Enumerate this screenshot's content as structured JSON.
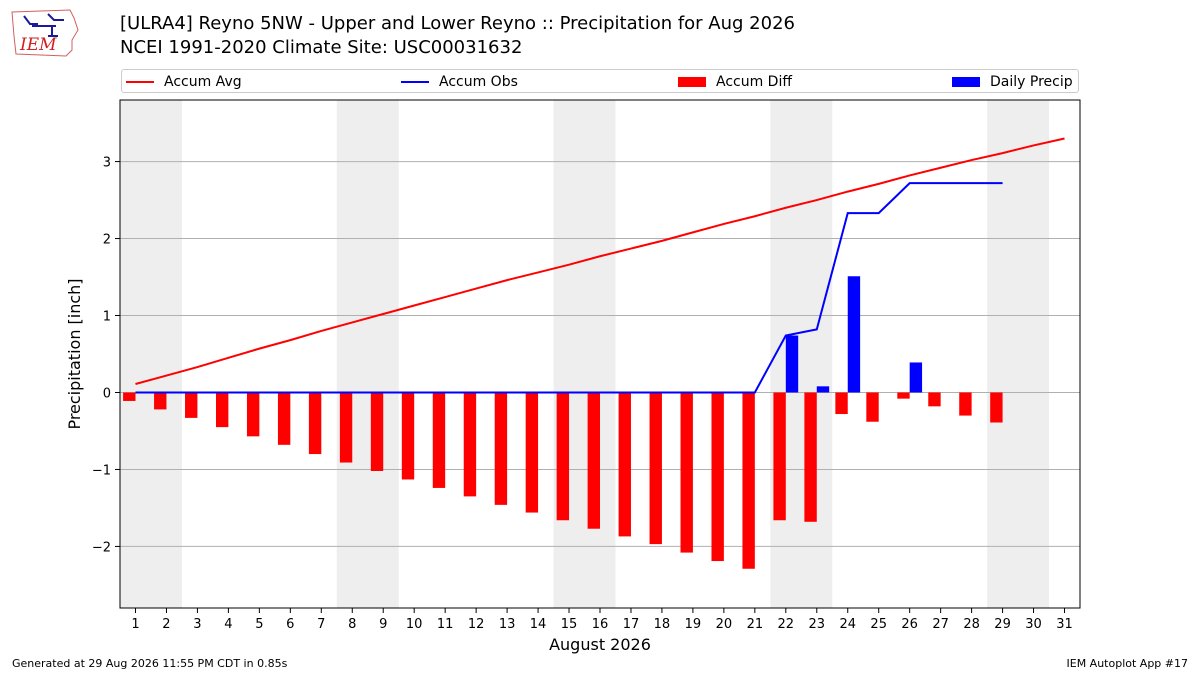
{
  "header": {
    "line1": "[ULRA4] Reyno 5NW - Upper and Lower Reyno :: Precipitation for Aug 2026",
    "line2": "NCEI 1991-2020 Climate Site: USC00031632"
  },
  "logo": {
    "text": "IEM"
  },
  "footer": {
    "left": "Generated at 29 Aug 2026 11:55 PM CDT in 0.85s",
    "right": "IEM Autoplot App #17"
  },
  "colors": {
    "avg": "#ff0000",
    "obs": "#0000ff",
    "diff": "#ff0000",
    "daily": "#0000ff",
    "weekend_band": "#eeeeee",
    "grid": "#b0b0b0"
  },
  "chart_data": {
    "type": "bar",
    "xlabel": "August 2026",
    "ylabel": "Precipitation [inch]",
    "xlim": [
      0.5,
      31.5
    ],
    "ylim": [
      -2.8,
      3.8
    ],
    "yticks": [
      -2,
      -1,
      0,
      1,
      2,
      3
    ],
    "ytick_labels": [
      "−2",
      "−1",
      "0",
      "1",
      "2",
      "3"
    ],
    "days": [
      1,
      2,
      3,
      4,
      5,
      6,
      7,
      8,
      9,
      10,
      11,
      12,
      13,
      14,
      15,
      16,
      17,
      18,
      19,
      20,
      21,
      22,
      23,
      24,
      25,
      26,
      27,
      28,
      29,
      30,
      31
    ],
    "weekend_bands": [
      [
        1,
        2
      ],
      [
        8,
        9
      ],
      [
        15,
        16
      ],
      [
        22,
        23
      ],
      [
        29,
        30
      ]
    ],
    "legend": [
      "Accum Avg",
      "Accum Obs",
      "Accum Diff",
      "Daily Precip"
    ],
    "grid": true,
    "series": [
      {
        "name": "Accum Avg",
        "kind": "line",
        "values": [
          0.11,
          0.22,
          0.33,
          0.45,
          0.57,
          0.68,
          0.8,
          0.91,
          1.02,
          1.13,
          1.24,
          1.35,
          1.46,
          1.56,
          1.66,
          1.77,
          1.87,
          1.97,
          2.08,
          2.19,
          2.29,
          2.4,
          2.5,
          2.61,
          2.71,
          2.82,
          2.92,
          3.02,
          3.11,
          3.21,
          3.3
        ]
      },
      {
        "name": "Accum Obs",
        "kind": "line",
        "values": [
          0,
          0,
          0,
          0,
          0,
          0,
          0,
          0,
          0,
          0,
          0,
          0,
          0,
          0,
          0,
          0,
          0,
          0,
          0,
          0,
          0,
          0.74,
          0.82,
          2.33,
          2.33,
          2.72,
          2.72,
          2.72,
          2.72
        ]
      },
      {
        "name": "Accum Diff",
        "kind": "bar",
        "values": [
          -0.11,
          -0.22,
          -0.33,
          -0.45,
          -0.57,
          -0.68,
          -0.8,
          -0.91,
          -1.02,
          -1.13,
          -1.24,
          -1.35,
          -1.46,
          -1.56,
          -1.66,
          -1.77,
          -1.87,
          -1.97,
          -2.08,
          -2.19,
          -2.29,
          -1.66,
          -1.68,
          -0.28,
          -0.38,
          -0.08,
          -0.18,
          -0.3,
          -0.39
        ]
      },
      {
        "name": "Daily Precip",
        "kind": "bar",
        "values": [
          0,
          0,
          0,
          0,
          0,
          0,
          0,
          0,
          0,
          0,
          0,
          0,
          0,
          0,
          0,
          0,
          0,
          0,
          0,
          0,
          0,
          0.74,
          0.08,
          1.51,
          0,
          0.39,
          0,
          0,
          0
        ]
      }
    ]
  }
}
